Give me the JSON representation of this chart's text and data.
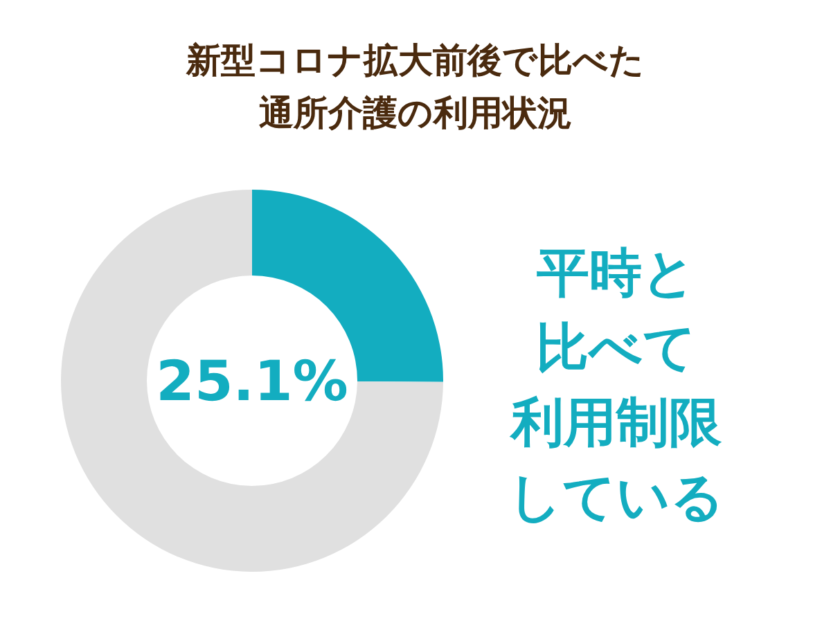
{
  "chart_data": {
    "type": "donut",
    "title": "新型コロナ拡大前後で比べた通所介護の利用状況",
    "categories": [
      null,
      null
    ],
    "values": [
      25.1,
      74.9
    ],
    "colors": [
      "#13adc0",
      "#e0e0e0"
    ],
    "annotations": [
      "25.1%",
      "平時と",
      "比べて",
      "利用制限",
      "している"
    ]
  }
}
